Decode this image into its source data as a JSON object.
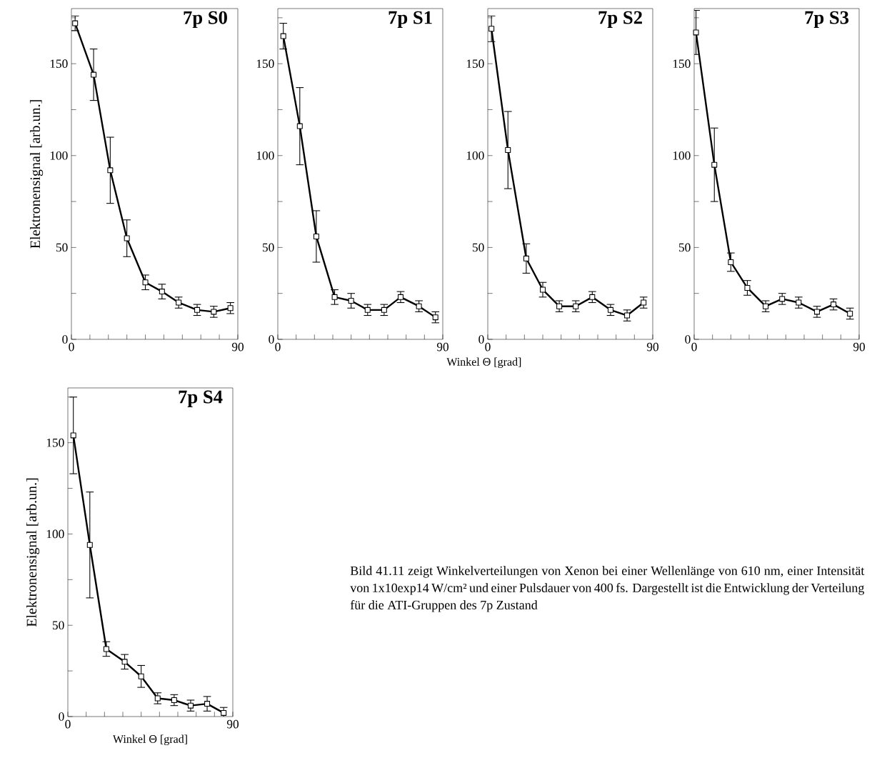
{
  "chart_data": [
    {
      "type": "line",
      "title": "7p  S0",
      "ylabel": "Elektronensignal  [arb.un.]",
      "color": "#000000",
      "marker": "square",
      "x": [
        2,
        12,
        21,
        30,
        40,
        49,
        58,
        68,
        77,
        86
      ],
      "values": [
        172,
        144,
        92,
        55,
        31,
        26,
        20,
        16,
        15,
        17
      ],
      "errors": [
        4,
        14,
        18,
        10,
        4,
        4,
        3,
        3,
        3,
        3
      ],
      "xlim": [
        0,
        90
      ],
      "ylim": [
        0,
        180
      ],
      "xticks": [
        0,
        {
          "value": 10,
          "label": null
        },
        {
          "value": 20,
          "label": null
        },
        {
          "value": 30,
          "label": null
        },
        {
          "value": 40,
          "label": null
        },
        {
          "value": 50,
          "label": null
        },
        {
          "value": 60,
          "label": null
        },
        {
          "value": 70,
          "label": null
        },
        {
          "value": 80,
          "label": null
        },
        90
      ],
      "yticks": [
        0,
        {
          "value": 25,
          "label": null
        },
        50,
        {
          "value": 75,
          "label": null
        },
        100,
        {
          "value": 125,
          "label": null
        },
        150,
        {
          "value": 175,
          "label": null
        }
      ]
    },
    {
      "type": "line",
      "title": "7p  S1",
      "xlabel": "Winkel Θ [grad]",
      "color": "#000000",
      "marker": "square",
      "x": [
        3,
        12,
        21,
        31,
        40,
        49,
        58,
        67,
        77,
        86
      ],
      "values": [
        165,
        116,
        56,
        23,
        21,
        16,
        16,
        23,
        18,
        12
      ],
      "errors": [
        7,
        21,
        14,
        4,
        4,
        3,
        3,
        3,
        3,
        3
      ],
      "xlim": [
        0,
        90
      ],
      "ylim": [
        0,
        180
      ],
      "xticks": [
        0,
        {
          "value": 10,
          "label": null
        },
        {
          "value": 20,
          "label": null
        },
        {
          "value": 30,
          "label": null
        },
        {
          "value": 40,
          "label": null
        },
        {
          "value": 50,
          "label": null
        },
        {
          "value": 60,
          "label": null
        },
        {
          "value": 70,
          "label": null
        },
        {
          "value": 80,
          "label": null
        },
        90
      ],
      "yticks": [
        0,
        {
          "value": 25,
          "label": null
        },
        50,
        {
          "value": 75,
          "label": null
        },
        100,
        {
          "value": 125,
          "label": null
        },
        150,
        {
          "value": 175,
          "label": null
        }
      ]
    },
    {
      "type": "line",
      "title": "7p  S2",
      "color": "#000000",
      "marker": "square",
      "x": [
        2,
        11,
        21,
        30,
        39,
        48,
        57,
        67,
        76,
        85
      ],
      "values": [
        169,
        103,
        44,
        27,
        18,
        18,
        23,
        16,
        13,
        20
      ],
      "errors": [
        7,
        21,
        8,
        4,
        3,
        3,
        3,
        3,
        3,
        3
      ],
      "xlim": [
        0,
        90
      ],
      "ylim": [
        0,
        180
      ],
      "xticks": [
        0,
        {
          "value": 10,
          "label": null
        },
        {
          "value": 20,
          "label": null
        },
        {
          "value": 30,
          "label": null
        },
        {
          "value": 40,
          "label": null
        },
        {
          "value": 50,
          "label": null
        },
        {
          "value": 60,
          "label": null
        },
        {
          "value": 70,
          "label": null
        },
        {
          "value": 80,
          "label": null
        },
        90
      ],
      "yticks": [
        0,
        {
          "value": 25,
          "label": null
        },
        50,
        {
          "value": 75,
          "label": null
        },
        100,
        {
          "value": 125,
          "label": null
        },
        150,
        {
          "value": 175,
          "label": null
        }
      ]
    },
    {
      "type": "line",
      "title": "7p  S3",
      "color": "#000000",
      "marker": "square",
      "x": [
        1,
        11,
        20,
        29,
        39,
        48,
        57,
        67,
        76,
        85
      ],
      "values": [
        167,
        95,
        42,
        28,
        18,
        22,
        20,
        15,
        19,
        14
      ],
      "errors": [
        12,
        20,
        5,
        4,
        3,
        3,
        3,
        3,
        3,
        3
      ],
      "xlim": [
        0,
        90
      ],
      "ylim": [
        0,
        180
      ],
      "xticks": [
        0,
        {
          "value": 10,
          "label": null
        },
        {
          "value": 20,
          "label": null
        },
        {
          "value": 30,
          "label": null
        },
        {
          "value": 40,
          "label": null
        },
        {
          "value": 50,
          "label": null
        },
        {
          "value": 60,
          "label": null
        },
        {
          "value": 70,
          "label": null
        },
        {
          "value": 80,
          "label": null
        },
        90
      ],
      "yticks": [
        0,
        {
          "value": 25,
          "label": null
        },
        50,
        {
          "value": 75,
          "label": null
        },
        100,
        {
          "value": 125,
          "label": null
        },
        150,
        {
          "value": 175,
          "label": null
        }
      ]
    },
    {
      "type": "line",
      "title": "7p  S4",
      "xlabel": "Winkel Θ [grad]",
      "ylabel": "Elektronensignal  [arb.un.]",
      "color": "#000000",
      "marker": "square",
      "x": [
        3,
        12,
        21,
        31,
        40,
        49,
        58,
        67,
        76,
        85
      ],
      "values": [
        154,
        94,
        37,
        30,
        22,
        10,
        9,
        6,
        7,
        2
      ],
      "errors": [
        21,
        29,
        4,
        4,
        6,
        3,
        3,
        3,
        4,
        3
      ],
      "xlim": [
        0,
        90
      ],
      "ylim": [
        0,
        180
      ],
      "xticks": [
        0,
        {
          "value": 10,
          "label": null
        },
        {
          "value": 20,
          "label": null
        },
        {
          "value": 30,
          "label": null
        },
        {
          "value": 40,
          "label": null
        },
        {
          "value": 50,
          "label": null
        },
        {
          "value": 60,
          "label": null
        },
        {
          "value": 70,
          "label": null
        },
        {
          "value": 80,
          "label": null
        },
        90
      ],
      "yticks": [
        0,
        {
          "value": 25,
          "label": null
        },
        50,
        {
          "value": 75,
          "label": null
        },
        100,
        {
          "value": 125,
          "label": null
        },
        150,
        {
          "value": 175,
          "label": null
        }
      ],
      "annotations": [
        "Bild 41.11 zeigt Winkelverteilungen von Xenon bei einer Wellenlänge von 610 nm, einer Intensität von 1x10exp14 W/cm² und einer Pulsdauer von 400 fs. Dargestellt ist die Entwicklung der Verteilung für die ATI-Gruppen des 7p Zustand"
      ]
    }
  ]
}
